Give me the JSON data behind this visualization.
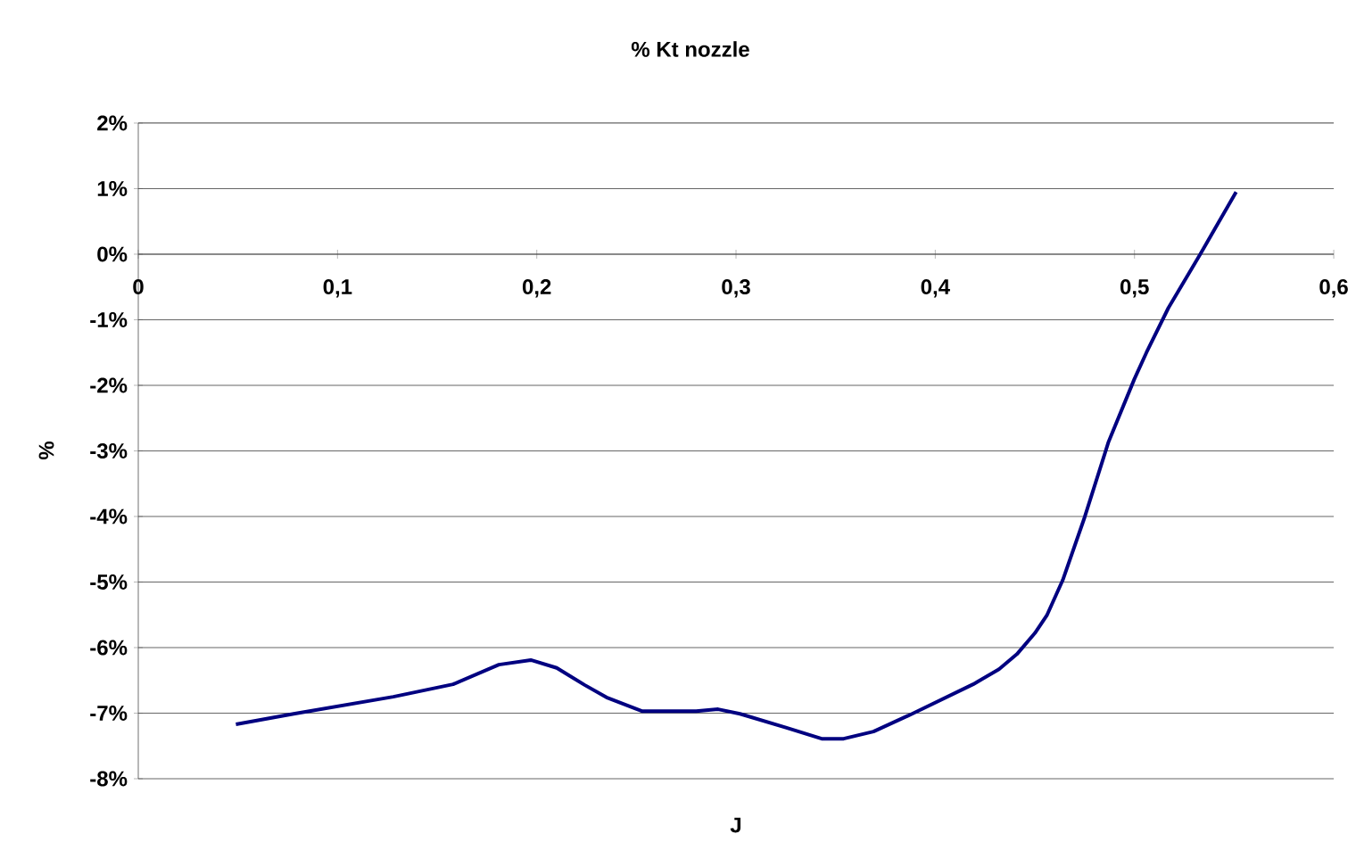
{
  "chart_data": {
    "type": "line",
    "title": "% Kt nozzle",
    "xlabel": "J",
    "ylabel": "%",
    "x": [
      0.049,
      0.078,
      0.128,
      0.158,
      0.181,
      0.197,
      0.21,
      0.224,
      0.235,
      0.253,
      0.28,
      0.291,
      0.302,
      0.325,
      0.343,
      0.354,
      0.369,
      0.387,
      0.419,
      0.432,
      0.441,
      0.45,
      0.456,
      0.464,
      0.475,
      0.487,
      0.5,
      0.506,
      0.517,
      0.533,
      0.551
    ],
    "series": [
      {
        "color": "#000080",
        "values": [
          -7.17,
          -7.01,
          -6.75,
          -6.56,
          -6.26,
          -6.19,
          -6.31,
          -6.57,
          -6.76,
          -6.97,
          -6.97,
          -6.94,
          -7.01,
          -7.22,
          -7.39,
          -7.39,
          -7.28,
          -7.03,
          -6.56,
          -6.33,
          -6.1,
          -5.78,
          -5.51,
          -4.97,
          -4.01,
          -2.86,
          -1.9,
          -1.5,
          -0.82,
          0.0,
          0.95
        ]
      }
    ],
    "xlim": [
      0,
      0.6
    ],
    "ylim": [
      -8,
      2
    ],
    "xticks": [
      {
        "value": 0,
        "label": "0"
      },
      {
        "value": 0.1,
        "label": "0,1"
      },
      {
        "value": 0.2,
        "label": "0,2"
      },
      {
        "value": 0.3,
        "label": "0,3"
      },
      {
        "value": 0.4,
        "label": "0,4"
      },
      {
        "value": 0.5,
        "label": "0,5"
      },
      {
        "value": 0.6,
        "label": "0,6"
      }
    ],
    "yticks": [
      {
        "value": -8,
        "label": "-8%"
      },
      {
        "value": -7,
        "label": "-7%"
      },
      {
        "value": -6,
        "label": "-6%"
      },
      {
        "value": -5,
        "label": "-5%"
      },
      {
        "value": -4,
        "label": "-4%"
      },
      {
        "value": -3,
        "label": "-3%"
      },
      {
        "value": -2,
        "label": "-2%"
      },
      {
        "value": -1,
        "label": "-1%"
      },
      {
        "value": 0,
        "label": "0%"
      },
      {
        "value": 1,
        "label": "1%"
      },
      {
        "value": 2,
        "label": "2%"
      }
    ],
    "grid": "y",
    "marker": "none",
    "line_style": "solid"
  }
}
